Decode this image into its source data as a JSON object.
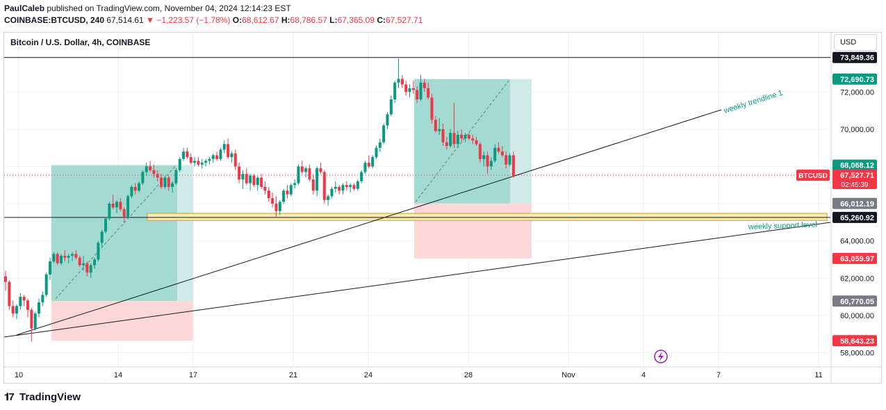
{
  "header": {
    "author": "PaulCaleb",
    "published": " published on TradingView.com, November 04, 2024 12:14:23 EST",
    "symbol": "COINBASE:BTCUSD, 240",
    "last": "67,514.61",
    "change": "−1,223.57 (−1.78%)",
    "o_label": "O:",
    "o_value": "68,612.67",
    "h_label": "H:",
    "h_value": "68,786.57",
    "l_label": "L:",
    "l_value": "67,365.09",
    "c_label": "C:",
    "c_value": "67,527.71"
  },
  "chart_title": "Bitcoin / U.S. Dollar, 4h, COINBASE",
  "currency_button": "USD",
  "footer": {
    "logo_text": "TradingView"
  },
  "colors": {
    "up": "#089981",
    "down": "#f23645",
    "target_zone": "#9ed9d1",
    "stop_zone": "#fdd8d8",
    "support_zone": "#fbe9b5",
    "line": "#131722"
  },
  "chart_data": {
    "type": "candlestick",
    "symbol": "BTCUSD",
    "timeframe": "4h",
    "ylim": [
      57500,
      75000
    ],
    "y_ticks": [
      58000,
      60000,
      62000,
      64000,
      66000,
      68000,
      70000,
      72000
    ],
    "y_tick_labels": [
      "58,000.00",
      "60,000.00",
      "62,000.00",
      "64,000.00",
      "66,000.00",
      "68,000.00",
      "70,000.00",
      "72,000.00"
    ],
    "x_tick_labels": [
      "10",
      "14",
      "17",
      "21",
      "24",
      "28",
      "Nov",
      "4",
      "7",
      "11"
    ],
    "price_labels": [
      {
        "value": 73849.36,
        "text": "73,849.36",
        "style": "dark"
      },
      {
        "value": 72690.73,
        "text": "72,690.73",
        "style": "green"
      },
      {
        "value": 68068.12,
        "text": "68,068.12",
        "style": "green"
      },
      {
        "value": 67527.71,
        "text": "67,527.71",
        "style": "red",
        "countdown": "02:45:39",
        "tag": "BTCUSD"
      },
      {
        "value": 66012.19,
        "text": "66,012.19",
        "style": "gray"
      },
      {
        "value": 65260.92,
        "text": "65,260.92",
        "style": "dark"
      },
      {
        "value": 63059.97,
        "text": "63,059.97",
        "style": "red"
      },
      {
        "value": 60770.05,
        "text": "60,770.05",
        "style": "gray"
      },
      {
        "value": 58643.23,
        "text": "58,643.23",
        "style": "red"
      }
    ],
    "horizontal_lines": [
      73849.36,
      65260.92
    ],
    "annotations": [
      {
        "text": "weekly trendline 1"
      },
      {
        "text": "weekly support level"
      }
    ],
    "support_zone": [
      65100,
      65480
    ],
    "positions": [
      {
        "entry": 60770.05,
        "target": 68068.12,
        "stop": 58643.23
      },
      {
        "entry": 66012.19,
        "target": 72690.73,
        "stop": 63059.97
      }
    ],
    "ohlc": [
      [
        62100,
        62400,
        61300,
        61800
      ],
      [
        61800,
        61900,
        60300,
        60500
      ],
      [
        60500,
        60800,
        59900,
        60100
      ],
      [
        60100,
        60600,
        59800,
        60500
      ],
      [
        60500,
        61200,
        60300,
        61000
      ],
      [
        61000,
        61100,
        60500,
        60800
      ],
      [
        60800,
        60900,
        59900,
        60300
      ],
      [
        60300,
        60400,
        58600,
        59300
      ],
      [
        59300,
        60200,
        59200,
        60100
      ],
      [
        60100,
        60900,
        59900,
        60700
      ],
      [
        60700,
        61300,
        60500,
        61100
      ],
      [
        61100,
        62300,
        61000,
        62200
      ],
      [
        62200,
        63100,
        61900,
        62900
      ],
      [
        62900,
        63400,
        62800,
        63300
      ],
      [
        63300,
        63400,
        62700,
        62800
      ],
      [
        62800,
        63300,
        62700,
        63200
      ],
      [
        63200,
        63500,
        62900,
        63100
      ],
      [
        63100,
        63300,
        62800,
        63200
      ],
      [
        63200,
        63400,
        62900,
        63300
      ],
      [
        63300,
        63500,
        63000,
        63100
      ],
      [
        63100,
        63200,
        62600,
        62700
      ],
      [
        62700,
        63200,
        62400,
        62800
      ],
      [
        62800,
        62900,
        62100,
        62300
      ],
      [
        62300,
        62800,
        62000,
        62700
      ],
      [
        62700,
        63100,
        62500,
        63000
      ],
      [
        63000,
        64000,
        62900,
        63900
      ],
      [
        63900,
        64600,
        63700,
        64500
      ],
      [
        64500,
        65300,
        64400,
        65200
      ],
      [
        65200,
        66100,
        65100,
        66000
      ],
      [
        66000,
        66500,
        65700,
        65800
      ],
      [
        65800,
        66200,
        65500,
        66100
      ],
      [
        66100,
        66300,
        65600,
        65700
      ],
      [
        65700,
        65800,
        65000,
        65300
      ],
      [
        65300,
        66500,
        65200,
        66400
      ],
      [
        66400,
        67000,
        66300,
        66900
      ],
      [
        66900,
        67100,
        66500,
        66700
      ],
      [
        66700,
        67200,
        66600,
        67100
      ],
      [
        67100,
        67800,
        67000,
        67700
      ],
      [
        67700,
        68200,
        67500,
        68000
      ],
      [
        68000,
        68300,
        67700,
        67800
      ],
      [
        67800,
        68100,
        67400,
        67600
      ],
      [
        67600,
        67800,
        67200,
        67400
      ],
      [
        67400,
        67600,
        66800,
        66900
      ],
      [
        66900,
        67500,
        66800,
        67400
      ],
      [
        67400,
        67500,
        66700,
        66900
      ],
      [
        66900,
        67200,
        66600,
        67100
      ],
      [
        67100,
        67900,
        67000,
        67800
      ],
      [
        67800,
        68500,
        67700,
        68400
      ],
      [
        68400,
        69000,
        68300,
        68800
      ],
      [
        68800,
        69000,
        68400,
        68500
      ],
      [
        68500,
        68700,
        68100,
        68200
      ],
      [
        68200,
        68500,
        68000,
        68300
      ],
      [
        68300,
        68500,
        68000,
        68100
      ],
      [
        68100,
        68400,
        67900,
        68200
      ],
      [
        68200,
        68400,
        68000,
        68300
      ],
      [
        68300,
        68500,
        68100,
        68400
      ],
      [
        68400,
        68700,
        68200,
        68600
      ],
      [
        68600,
        68800,
        68300,
        68400
      ],
      [
        68400,
        69000,
        68300,
        68900
      ],
      [
        68900,
        69400,
        68700,
        69200
      ],
      [
        69200,
        69500,
        68400,
        68500
      ],
      [
        68500,
        68800,
        68200,
        68700
      ],
      [
        68700,
        68900,
        67800,
        68000
      ],
      [
        68000,
        68200,
        67100,
        67300
      ],
      [
        67300,
        67800,
        66800,
        67600
      ],
      [
        67600,
        67900,
        67000,
        67100
      ],
      [
        67100,
        67600,
        66700,
        67500
      ],
      [
        67500,
        67600,
        66900,
        67000
      ],
      [
        67000,
        67500,
        66700,
        67400
      ],
      [
        67400,
        67600,
        66800,
        66900
      ],
      [
        66900,
        67200,
        66500,
        66700
      ],
      [
        66700,
        66900,
        66100,
        66300
      ],
      [
        66300,
        66600,
        65800,
        66000
      ],
      [
        66000,
        66400,
        65300,
        65600
      ],
      [
        65600,
        66200,
        65400,
        66100
      ],
      [
        66100,
        66800,
        66000,
        66700
      ],
      [
        66700,
        67000,
        66300,
        66500
      ],
      [
        66500,
        67100,
        66400,
        67000
      ],
      [
        67000,
        67300,
        66800,
        67100
      ],
      [
        67100,
        68100,
        67000,
        68000
      ],
      [
        68000,
        68300,
        67600,
        67700
      ],
      [
        67700,
        68000,
        67400,
        67900
      ],
      [
        67900,
        68100,
        67200,
        67300
      ],
      [
        67300,
        67600,
        66500,
        66700
      ],
      [
        66700,
        68000,
        66400,
        67900
      ],
      [
        67900,
        68200,
        67600,
        67700
      ],
      [
        67700,
        67800,
        66000,
        66200
      ],
      [
        66200,
        66500,
        65900,
        66400
      ],
      [
        66400,
        66900,
        66300,
        66800
      ],
      [
        66800,
        67200,
        66600,
        66900
      ],
      [
        66900,
        67000,
        66500,
        66700
      ],
      [
        66700,
        67100,
        66500,
        67000
      ],
      [
        67000,
        67200,
        66700,
        66900
      ],
      [
        66900,
        67100,
        66600,
        67000
      ],
      [
        67000,
        67100,
        66700,
        66800
      ],
      [
        66800,
        67300,
        66700,
        67200
      ],
      [
        67200,
        67800,
        67100,
        67700
      ],
      [
        67700,
        68300,
        67600,
        68200
      ],
      [
        68200,
        68600,
        67900,
        68000
      ],
      [
        68000,
        68600,
        67900,
        68500
      ],
      [
        68500,
        69100,
        68400,
        69000
      ],
      [
        69000,
        69500,
        68800,
        69300
      ],
      [
        69300,
        70300,
        69200,
        70200
      ],
      [
        70200,
        70900,
        70000,
        70800
      ],
      [
        70800,
        71800,
        70700,
        71600
      ],
      [
        71600,
        72600,
        71400,
        72500
      ],
      [
        72500,
        73800,
        72200,
        72700
      ],
      [
        72700,
        72900,
        72200,
        72400
      ],
      [
        72400,
        72600,
        71800,
        72000
      ],
      [
        72000,
        72400,
        71700,
        72200
      ],
      [
        72200,
        72600,
        71900,
        72100
      ],
      [
        72100,
        72300,
        71400,
        71600
      ],
      [
        71600,
        72900,
        71500,
        72500
      ],
      [
        72500,
        72700,
        72000,
        72200
      ],
      [
        72200,
        72500,
        71600,
        71700
      ],
      [
        71700,
        71900,
        70300,
        70500
      ],
      [
        70500,
        70700,
        69800,
        69900
      ],
      [
        69900,
        70600,
        69700,
        70000
      ],
      [
        70000,
        70300,
        69100,
        69300
      ],
      [
        69300,
        69600,
        68900,
        69100
      ],
      [
        69100,
        70000,
        69000,
        69800
      ],
      [
        69800,
        71400,
        69000,
        69200
      ],
      [
        69200,
        69900,
        69000,
        69700
      ],
      [
        69700,
        70000,
        69300,
        69500
      ],
      [
        69500,
        69800,
        69300,
        69700
      ],
      [
        69700,
        69800,
        69400,
        69500
      ],
      [
        69500,
        69700,
        69200,
        69400
      ],
      [
        69400,
        69600,
        69100,
        69200
      ],
      [
        69200,
        69300,
        68200,
        68400
      ],
      [
        68400,
        68800,
        68000,
        68600
      ],
      [
        68600,
        68800,
        67600,
        68000
      ],
      [
        68000,
        68500,
        67800,
        68300
      ],
      [
        68300,
        69200,
        68200,
        69000
      ],
      [
        69000,
        69300,
        68700,
        68800
      ],
      [
        68800,
        69100,
        68500,
        68600
      ],
      [
        68600,
        68800,
        67900,
        68100
      ],
      [
        68100,
        68700,
        68000,
        68600
      ],
      [
        68600,
        68800,
        67400,
        67500
      ]
    ]
  }
}
